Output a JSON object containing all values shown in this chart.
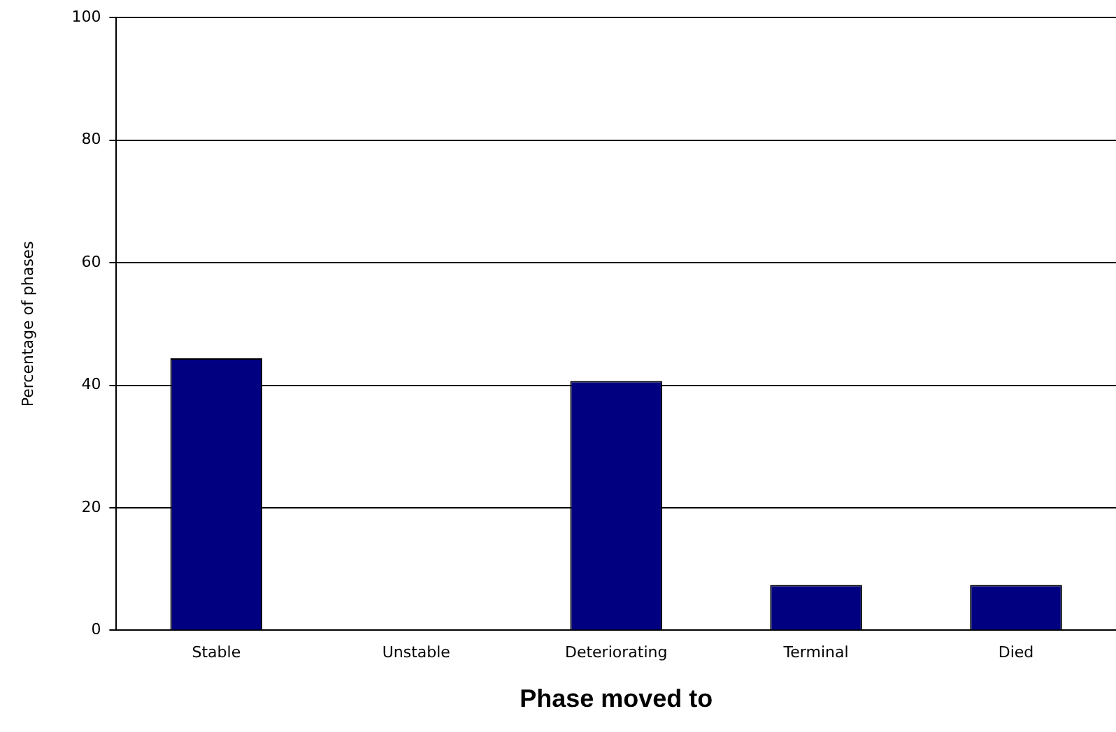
{
  "chart_data": {
    "type": "bar",
    "xlabel": "Phase moved to",
    "ylabel": "Percentage of phases",
    "categories": [
      "Stable",
      "Unstable",
      "Deteriorating",
      "Terminal",
      "Died"
    ],
    "values": [
      44.4,
      0,
      40.7,
      7.4,
      7.4
    ],
    "color": "#000080",
    "ylim": [
      0,
      100
    ],
    "yticks": [
      0,
      20,
      40,
      60,
      80,
      100
    ],
    "grid": "y"
  }
}
